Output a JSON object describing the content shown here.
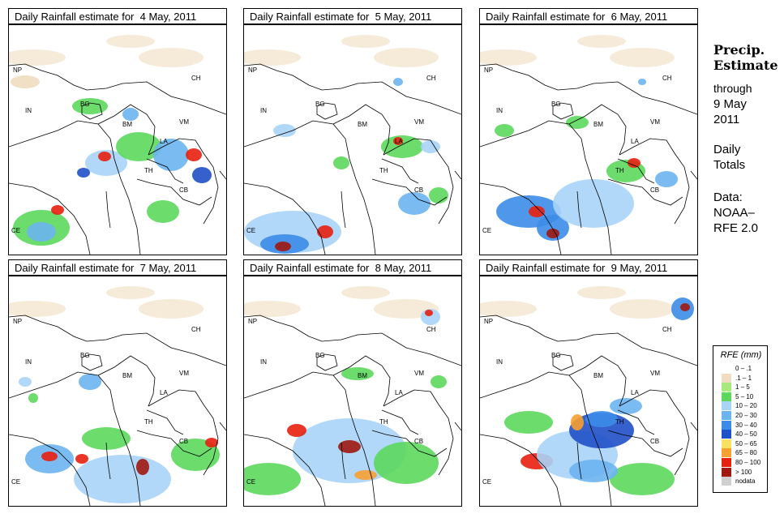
{
  "title_prefix": "Daily Rainfall estimate for",
  "panels": [
    {
      "date": "4 May, 2011"
    },
    {
      "date": "5 May, 2011"
    },
    {
      "date": "6 May, 2011"
    },
    {
      "date": "7 May, 2011"
    },
    {
      "date": "8 May, 2011"
    },
    {
      "date": "9 May, 2011"
    }
  ],
  "country_labels": [
    "NP",
    "CH",
    "IN",
    "BG",
    "BM",
    "VM",
    "LA",
    "TH",
    "CB",
    "CE"
  ],
  "side_text": {
    "heading_line1": "Precip.",
    "heading_line2": "Estimate",
    "through": "through",
    "date_line1": "9 May",
    "date_line2": "2011",
    "daily_line1": "Daily",
    "daily_line2": "Totals",
    "data_line1": "Data:",
    "data_line2": "NOAA–",
    "data_line3": "RFE 2.0"
  },
  "legend": {
    "title": "RFE (mm)",
    "items": [
      {
        "label": "0 – .1",
        "color": "#ffffff"
      },
      {
        "label": ".1 – 1",
        "color": "#f0dcc0"
      },
      {
        "label": "1 – 5",
        "color": "#a8e87c"
      },
      {
        "label": "5 – 10",
        "color": "#5cd85c"
      },
      {
        "label": "10 – 20",
        "color": "#a8d4f8"
      },
      {
        "label": "20 – 30",
        "color": "#6cb4f0"
      },
      {
        "label": "30 – 40",
        "color": "#3c8ce8"
      },
      {
        "label": "40 – 50",
        "color": "#2050c8"
      },
      {
        "label": "50 – 65",
        "color": "#f8e060"
      },
      {
        "label": "65 – 80",
        "color": "#f8a030"
      },
      {
        "label": "80 – 100",
        "color": "#e82010"
      },
      {
        "label": "> 100",
        "color": "#a01810"
      },
      {
        "label": "nodata",
        "color": "#d0d0d0"
      }
    ]
  }
}
